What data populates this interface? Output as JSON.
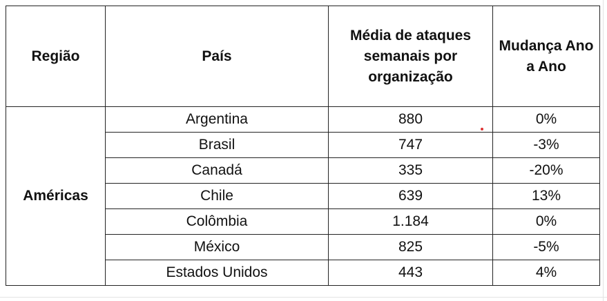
{
  "table": {
    "header": [
      "Região",
      "País",
      "Média de ataques semanais por organização",
      "Mudança Ano a Ano"
    ],
    "region": "Américas",
    "rows": [
      [
        "Argentina",
        "880",
        "0%"
      ],
      [
        "Brasil",
        "747",
        "-3%"
      ],
      [
        "Canadá",
        "335",
        "-20%"
      ],
      [
        "Chile",
        "639",
        "13%"
      ],
      [
        "Colômbia",
        "1.184",
        "0%"
      ],
      [
        "México",
        "825",
        "-5%"
      ],
      [
        "Estados Unidos",
        "443",
        "4%"
      ]
    ]
  }
}
